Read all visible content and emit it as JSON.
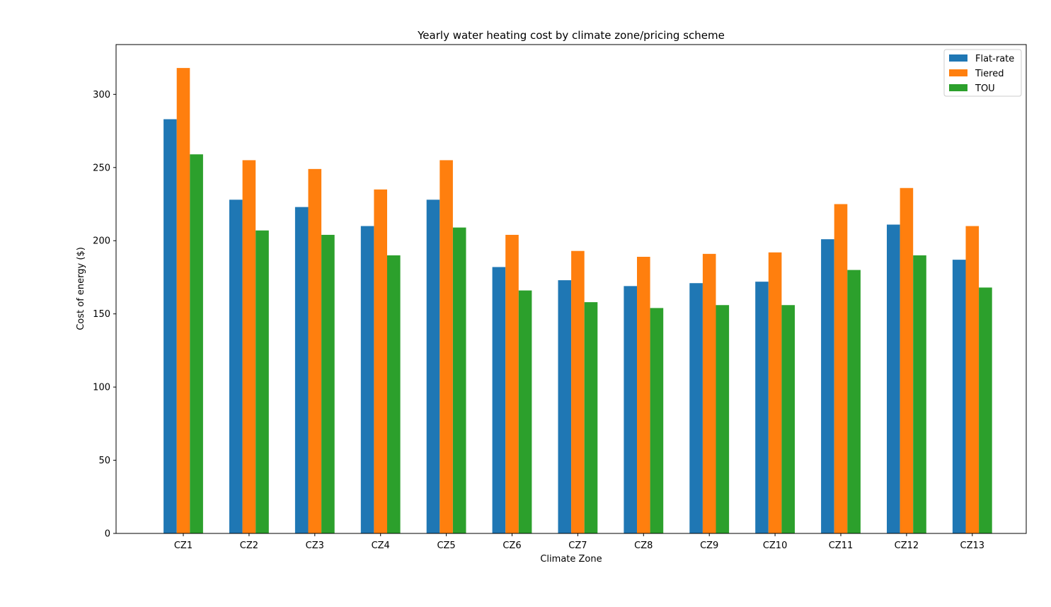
{
  "chart_data": {
    "type": "bar",
    "title": "Yearly water heating cost by climate zone/pricing scheme",
    "xlabel": "Climate Zone",
    "ylabel": "Cost of energy ($)",
    "categories": [
      "CZ1",
      "CZ2",
      "CZ3",
      "CZ4",
      "CZ5",
      "CZ6",
      "CZ7",
      "CZ8",
      "CZ9",
      "CZ10",
      "CZ11",
      "CZ12",
      "CZ13"
    ],
    "series": [
      {
        "name": "Flat-rate",
        "color": "#1f77b4",
        "values": [
          283,
          228,
          223,
          210,
          228,
          182,
          173,
          169,
          171,
          172,
          201,
          211,
          187
        ]
      },
      {
        "name": "Tiered",
        "color": "#ff7f0e",
        "values": [
          318,
          255,
          249,
          235,
          255,
          204,
          193,
          189,
          191,
          192,
          225,
          236,
          210
        ]
      },
      {
        "name": "TOU",
        "color": "#2ca02c",
        "values": [
          259,
          207,
          204,
          190,
          209,
          166,
          158,
          154,
          156,
          156,
          180,
          190,
          168
        ]
      }
    ],
    "ylim": [
      0,
      334
    ],
    "yticks": [
      0,
      50,
      100,
      150,
      200,
      250,
      300
    ],
    "legend": "top-right",
    "grid": false
  }
}
